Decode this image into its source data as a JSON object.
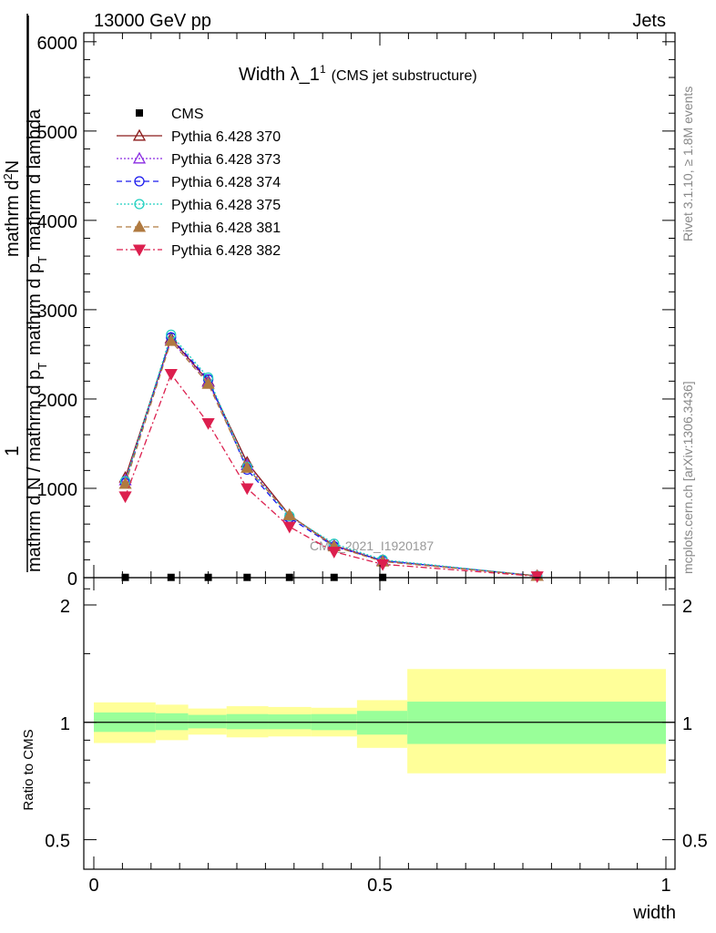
{
  "header": {
    "left": "13000 GeV pp",
    "right": "Jets",
    "side_top": "Rivet 3.1.10, ≥ 1.8M events",
    "side_bottom": "mcplots.cern.ch [arXiv:1306.3436]"
  },
  "chart_data": [
    {
      "type": "line",
      "title_main": "Width λ_1",
      "title_sup": "1",
      "title_paren": "(CMS jet substructure)",
      "watermark": "CMS_2021_I1920187",
      "ylabel_top": "1",
      "ylabel_bottom": "mathrm d N / mathrm d p",
      "ylabel_bottom_sub": "T",
      "ylabel_right_top": "mathrm d",
      "ylabel_right_top_sup": "2",
      "ylabel_right_top_cont": "N",
      "ylabel_right_bottom": "mathrm d p",
      "ylabel_right_bottom_sub": "T",
      "ylabel_right_bottom_cont": " mathrm d lambda",
      "xlim": [
        0,
        1
      ],
      "ylim": [
        0,
        6100
      ],
      "yticks": [
        0,
        1000,
        2000,
        3000,
        4000,
        5000,
        6000
      ],
      "ytick_labels": [
        "0",
        "1000",
        "2000",
        "3000",
        "4000",
        "5000",
        "6000"
      ],
      "legend_position": "top-left",
      "series": [
        {
          "name": "CMS",
          "color": "#000000",
          "style": "data",
          "x": [
            0.055,
            0.135,
            0.2,
            0.268,
            0.342,
            0.42,
            0.505
          ],
          "y": [
            3,
            3,
            3,
            3,
            3,
            3,
            3
          ]
        },
        {
          "name": "Pythia 6.428 370",
          "color": "#8b1a1a",
          "style": "solid",
          "marker": "triangle-open",
          "x": [
            0.055,
            0.135,
            0.2,
            0.268,
            0.342,
            0.42,
            0.505,
            0.775
          ],
          "y": [
            1120,
            2680,
            2200,
            1290,
            700,
            360,
            190,
            20
          ]
        },
        {
          "name": "Pythia 6.428 373",
          "color": "#8a2be2",
          "style": "dotted",
          "marker": "triangle-open",
          "x": [
            0.055,
            0.135,
            0.2,
            0.268,
            0.342,
            0.42,
            0.505,
            0.775
          ],
          "y": [
            1090,
            2660,
            2190,
            1260,
            690,
            360,
            190,
            20
          ]
        },
        {
          "name": "Pythia 6.428 374",
          "color": "#1a1aee",
          "style": "dashed",
          "marker": "circle-open",
          "x": [
            0.055,
            0.135,
            0.2,
            0.268,
            0.342,
            0.42,
            0.505,
            0.775
          ],
          "y": [
            1060,
            2690,
            2220,
            1210,
            670,
            350,
            190,
            20
          ]
        },
        {
          "name": "Pythia 6.428 375",
          "color": "#20d0c0",
          "style": "dotted",
          "marker": "circle-open",
          "x": [
            0.055,
            0.135,
            0.2,
            0.268,
            0.342,
            0.42,
            0.505,
            0.775
          ],
          "y": [
            1080,
            2720,
            2240,
            1240,
            690,
            380,
            200,
            20
          ]
        },
        {
          "name": "Pythia 6.428 381",
          "color": "#b07a40",
          "style": "dashed",
          "marker": "triangle-filled",
          "x": [
            0.055,
            0.135,
            0.2,
            0.268,
            0.342,
            0.42,
            0.505,
            0.775
          ],
          "y": [
            1050,
            2650,
            2170,
            1230,
            700,
            350,
            180,
            20
          ]
        },
        {
          "name": "Pythia 6.428 382",
          "color": "#dc1f4e",
          "style": "dashdot",
          "marker": "triangle-down-filled",
          "x": [
            0.055,
            0.135,
            0.2,
            0.268,
            0.342,
            0.42,
            0.505,
            0.775
          ],
          "y": [
            910,
            2280,
            1730,
            1000,
            570,
            290,
            150,
            15
          ]
        }
      ]
    },
    {
      "type": "area",
      "ylabel": "Ratio to CMS",
      "xlabel": "width",
      "xlim": [
        0,
        1
      ],
      "ylim": [
        0.42,
        2.35
      ],
      "yscale": "log",
      "yticks": [
        0.5,
        1,
        2
      ],
      "ytick_labels": [
        "0.5",
        "1",
        "2"
      ],
      "xticks": [
        0,
        0.5,
        1
      ],
      "xtick_labels": [
        "0",
        "0.5",
        "1"
      ],
      "reference_line": 1,
      "bins": [
        {
          "x0": 0.0,
          "x1": 0.108,
          "stat_lo": 0.945,
          "stat_hi": 1.06,
          "syst_lo": 0.885,
          "syst_hi": 1.125
        },
        {
          "x0": 0.108,
          "x1": 0.165,
          "stat_lo": 0.955,
          "stat_hi": 1.055,
          "syst_lo": 0.9,
          "syst_hi": 1.11
        },
        {
          "x0": 0.165,
          "x1": 0.232,
          "stat_lo": 0.965,
          "stat_hi": 1.045,
          "syst_lo": 0.93,
          "syst_hi": 1.085
        },
        {
          "x0": 0.232,
          "x1": 0.305,
          "stat_lo": 0.96,
          "stat_hi": 1.05,
          "syst_lo": 0.915,
          "syst_hi": 1.1
        },
        {
          "x0": 0.305,
          "x1": 0.38,
          "stat_lo": 0.96,
          "stat_hi": 1.048,
          "syst_lo": 0.92,
          "syst_hi": 1.095
        },
        {
          "x0": 0.38,
          "x1": 0.46,
          "stat_lo": 0.955,
          "stat_hi": 1.05,
          "syst_lo": 0.92,
          "syst_hi": 1.09
        },
        {
          "x0": 0.46,
          "x1": 0.548,
          "stat_lo": 0.93,
          "stat_hi": 1.07,
          "syst_lo": 0.86,
          "syst_hi": 1.14
        },
        {
          "x0": 0.548,
          "x1": 1.0,
          "stat_lo": 0.88,
          "stat_hi": 1.13,
          "syst_lo": 0.74,
          "syst_hi": 1.37
        }
      ],
      "stat_color": "#99ff99",
      "syst_color": "#ffff99"
    }
  ]
}
